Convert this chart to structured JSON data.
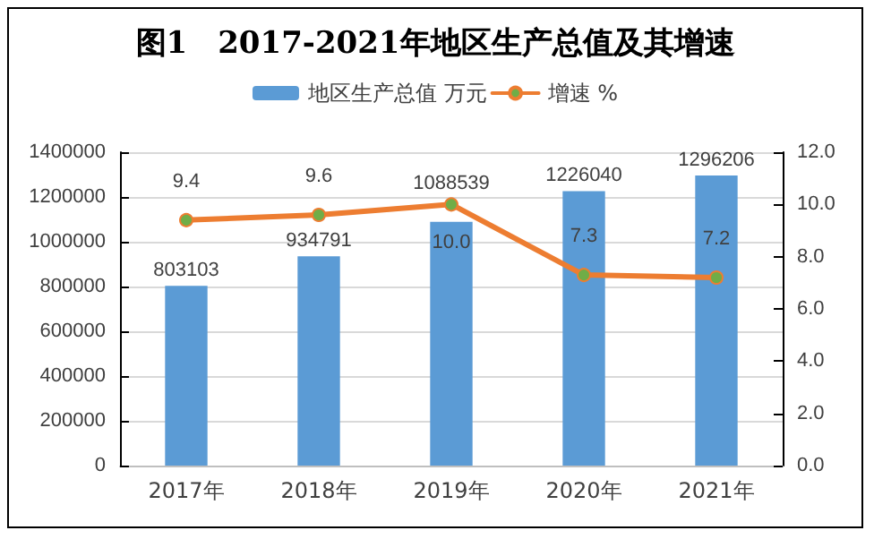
{
  "chart_data": {
    "type": "bar",
    "title": "图1　2017-2021年地区生产总值及其增速",
    "categories": [
      "2017年",
      "2018年",
      "2019年",
      "2020年",
      "2021年"
    ],
    "series": [
      {
        "name": "地区生产总值 万元",
        "color": "#5b9bd5",
        "values": [
          803103,
          934791,
          1088539,
          1226040,
          1296206
        ],
        "value_labels": [
          "803103",
          "934791",
          "1088539",
          "1226040",
          "1296206"
        ]
      },
      {
        "name": "增速 %",
        "type": "line",
        "axis": "y2",
        "color": "#ed7d31",
        "marker": "circle",
        "values": [
          9.4,
          9.6,
          10.0,
          7.3,
          7.2
        ],
        "value_labels": [
          "9.4",
          "9.6",
          "10.0",
          "7.3",
          "7.2"
        ]
      }
    ],
    "ylim": [
      0,
      1400000
    ],
    "yticks": [
      0,
      200000,
      400000,
      600000,
      800000,
      1000000,
      1200000,
      1400000
    ],
    "y2lim": [
      0,
      12
    ],
    "y2ticks": [
      {
        "value": 0,
        "label": "0.0"
      },
      {
        "value": 2,
        "label": "2.0"
      },
      {
        "value": 4,
        "label": "4.0"
      },
      {
        "value": 6,
        "label": "6.0"
      },
      {
        "value": 8,
        "label": "8.0"
      },
      {
        "value": 10,
        "label": "10.0"
      },
      {
        "value": 12,
        "label": "12.0"
      }
    ],
    "grid": "y",
    "legend": "top"
  }
}
